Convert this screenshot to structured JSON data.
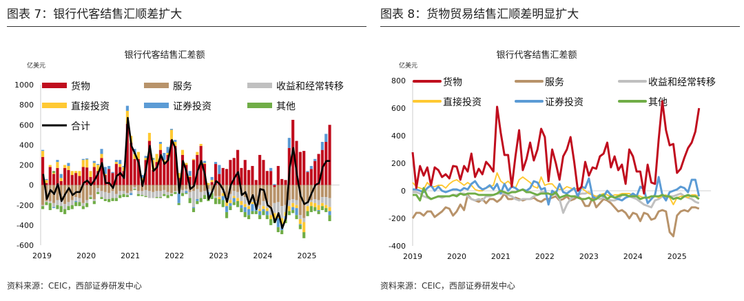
{
  "left_panel": {
    "heading": "图表 7：银行代客结售汇顺差扩大",
    "source": "资料来源：CEIC，西部证券研发中心"
  },
  "right_panel": {
    "heading": "图表 8：货物贸易结售汇顺差明显扩大",
    "source": "资料来源：CEIC，西部证券研发中心"
  },
  "colors": {
    "goods": "#C00D1E",
    "services": "#B8936A",
    "income": "#C0C0C0",
    "direct": "#FFC933",
    "portfolio": "#5B9BD5",
    "other": "#70AD47",
    "total": "#000000"
  },
  "chart_data": [
    {
      "type": "bar",
      "stacked": true,
      "title": "银行代客结售汇差额",
      "unit": "亿美元",
      "x_start": "2019-01",
      "x_end": "2025-07",
      "frequency": "monthly",
      "xticks": [
        "2019",
        "2020",
        "2021",
        "2022",
        "2023",
        "2024",
        "2025"
      ],
      "ylim": [
        -600,
        1000
      ],
      "yticks": [
        1000,
        800,
        600,
        400,
        200,
        0,
        -200,
        -400,
        -600
      ],
      "legend_position": "top",
      "series_ref": "series",
      "total_series": {
        "name": "合计",
        "type": "line",
        "computed_as": "sum of series"
      }
    },
    {
      "type": "line",
      "title": "银行代客结售汇差额",
      "unit": "亿美元",
      "x_start": "2019-01",
      "x_end": "2025-07",
      "frequency": "monthly",
      "xticks": [
        "2019",
        "2020",
        "2021",
        "2022",
        "2023",
        "2024",
        "2025"
      ],
      "ylim": [
        -400,
        800
      ],
      "yticks": [
        800,
        600,
        400,
        200,
        0,
        -200,
        -400
      ],
      "legend_position": "top",
      "series_ref": "series"
    }
  ],
  "series": [
    {
      "key": "goods",
      "name": "货物",
      "values": [
        280,
        20,
        180,
        110,
        170,
        40,
        170,
        150,
        100,
        120,
        90,
        180,
        175,
        80,
        180,
        140,
        270,
        100,
        160,
        120,
        210,
        180,
        140,
        610,
        420,
        260,
        260,
        30,
        250,
        440,
        150,
        230,
        350,
        220,
        300,
        450,
        390,
        70,
        300,
        200,
        80,
        250,
        300,
        390,
        210,
        0,
        30,
        210,
        110,
        170,
        160,
        250,
        270,
        350,
        170,
        250,
        150,
        190,
        50,
        300,
        250,
        140,
        140,
        -20,
        190,
        60,
        50,
        370,
        650,
        440,
        330,
        340,
        130,
        160,
        240,
        310,
        350,
        430,
        600
      ]
    },
    {
      "key": "services",
      "name": "服务",
      "values": [
        -200,
        -160,
        -160,
        -180,
        -150,
        -150,
        -190,
        -170,
        -150,
        -120,
        -130,
        -180,
        -150,
        -100,
        -140,
        -30,
        -60,
        -70,
        -80,
        -60,
        -90,
        -60,
        -60,
        -80,
        -60,
        -20,
        -60,
        -60,
        -50,
        -60,
        -70,
        -60,
        -60,
        -50,
        -70,
        -80,
        -60,
        -60,
        -50,
        -40,
        -70,
        -60,
        -40,
        -70,
        -60,
        -40,
        -60,
        -110,
        -110,
        -50,
        -120,
        -90,
        -60,
        -70,
        -90,
        -120,
        -150,
        -140,
        -160,
        -200,
        -160,
        -170,
        -220,
        -160,
        -170,
        -210,
        -200,
        -150,
        -140,
        -150,
        -300,
        -330,
        -180,
        -150,
        -140,
        -150,
        -120,
        -120,
        -130
      ]
    },
    {
      "key": "income",
      "name": "收益和经常转移",
      "values": [
        -10,
        -10,
        -20,
        -40,
        -50,
        -60,
        -50,
        -40,
        -50,
        -40,
        -40,
        -30,
        -30,
        -20,
        -20,
        -40,
        -60,
        -70,
        -60,
        -70,
        -40,
        -40,
        -30,
        -20,
        -20,
        -20,
        -30,
        -40,
        -60,
        -70,
        -60,
        -60,
        -60,
        -40,
        -30,
        -10,
        -10,
        -20,
        -30,
        -20,
        -60,
        -160,
        -100,
        -60,
        -40,
        -30,
        -20,
        -20,
        -10,
        -30,
        -50,
        -60,
        -50,
        -60,
        -70,
        -70,
        -60,
        -30,
        -30,
        -40,
        -50,
        -60,
        -80,
        -100,
        -110,
        -120,
        -70,
        -60,
        -40,
        -50,
        -40,
        -40,
        -30,
        -20,
        -40,
        -50,
        -60,
        -80,
        -90
      ]
    },
    {
      "key": "direct",
      "name": "直接投资",
      "values": [
        60,
        30,
        20,
        10,
        60,
        30,
        30,
        40,
        40,
        20,
        50,
        70,
        80,
        60,
        40,
        60,
        40,
        10,
        0,
        0,
        20,
        30,
        40,
        130,
        70,
        50,
        70,
        40,
        20,
        80,
        100,
        80,
        60,
        30,
        20,
        100,
        40,
        50,
        50,
        20,
        10,
        10,
        30,
        20,
        10,
        20,
        20,
        0,
        -20,
        -30,
        -40,
        -30,
        -20,
        -30,
        -40,
        -30,
        -30,
        -20,
        -20,
        -20,
        -30,
        -30,
        -40,
        -50,
        -50,
        -60,
        -40,
        -50,
        -40,
        -30,
        -50,
        -100,
        -50,
        -40,
        -40,
        -50,
        -30,
        -30,
        -40
      ]
    },
    {
      "key": "portfolio",
      "name": "证券投资",
      "values": [
        10,
        10,
        0,
        -10,
        20,
        40,
        0,
        30,
        0,
        -10,
        0,
        10,
        10,
        0,
        20,
        10,
        50,
        70,
        30,
        10,
        20,
        40,
        10,
        50,
        -20,
        50,
        0,
        30,
        20,
        0,
        10,
        0,
        20,
        70,
        60,
        10,
        20,
        -100,
        0,
        -20,
        50,
        -10,
        -20,
        0,
        20,
        -40,
        30,
        20,
        90,
        -40,
        -60,
        -30,
        -40,
        0,
        -30,
        -50,
        -60,
        -70,
        -50,
        -40,
        -20,
        -40,
        30,
        10,
        -90,
        -60,
        -30,
        100,
        -30,
        -70,
        -10,
        0,
        10,
        30,
        20,
        -10,
        80,
        80,
        -40
      ]
    },
    {
      "key": "other",
      "name": "其他",
      "values": [
        -30,
        -30,
        -70,
        20,
        -40,
        -60,
        -50,
        -40,
        -40,
        -40,
        -40,
        -30,
        -40,
        -20,
        -30,
        -20,
        -20,
        -20,
        -30,
        -30,
        -30,
        -30,
        -30,
        -20,
        0,
        -10,
        -20,
        -10,
        -10,
        0,
        10,
        -10,
        -10,
        -20,
        -30,
        -20,
        -20,
        -20,
        -30,
        -10,
        -50,
        -40,
        -30,
        -40,
        -40,
        -50,
        -60,
        -60,
        -50,
        -70,
        -60,
        -40,
        -30,
        -60,
        -40,
        -50,
        -40,
        -30,
        -30,
        -40,
        -40,
        -40,
        -60,
        -50,
        -50,
        -40,
        -40,
        -40,
        -30,
        -40,
        -40,
        -60,
        -50,
        -60,
        -40,
        -30,
        -40,
        -40,
        -60
      ]
    }
  ]
}
